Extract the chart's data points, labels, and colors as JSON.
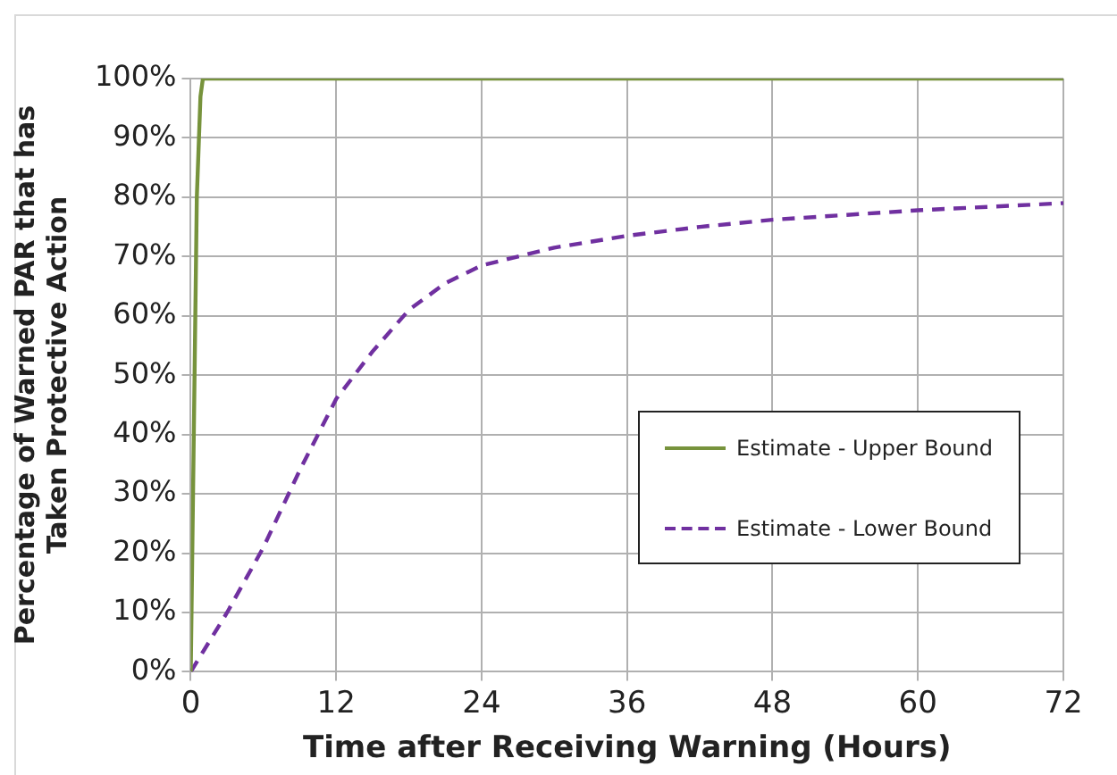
{
  "chart_data": {
    "type": "line",
    "xlabel": "Time after Receiving Warning (Hours)",
    "ylabel": "Percentage of Warned PAR that has Taken Protective Action",
    "xlim": [
      0,
      72
    ],
    "xticks": [
      0,
      12,
      24,
      36,
      48,
      60,
      72
    ],
    "ylim": [
      0,
      100
    ],
    "yticks": [
      {
        "value": 0,
        "label": "0%"
      },
      {
        "value": 10,
        "label": "10%"
      },
      {
        "value": 20,
        "label": "20%"
      },
      {
        "value": 30,
        "label": "30%"
      },
      {
        "value": 40,
        "label": "40%"
      },
      {
        "value": 50,
        "label": "50%"
      },
      {
        "value": 60,
        "label": "60%"
      },
      {
        "value": 70,
        "label": "70%"
      },
      {
        "value": 80,
        "label": "80%"
      },
      {
        "value": 90,
        "label": "90%"
      },
      {
        "value": 100,
        "label": "100%"
      }
    ],
    "grid": true,
    "legend": "right",
    "marker": "none",
    "series": [
      {
        "name": "Estimate - Upper Bound",
        "color": "#77933c",
        "line_style": "solid",
        "x": [
          0,
          0.25,
          0.5,
          0.8,
          1,
          72
        ],
        "values": [
          0,
          40,
          80,
          97,
          100,
          100
        ]
      },
      {
        "name": "Estimate - Lower Bound",
        "color": "#7030a0",
        "line_style": "dashed",
        "x": [
          0,
          3,
          6,
          9,
          12,
          15,
          18,
          21,
          24,
          30,
          36,
          42,
          48,
          54,
          60,
          66,
          72
        ],
        "values": [
          0,
          10,
          21,
          34,
          46,
          54,
          61,
          65.5,
          68.5,
          71.5,
          73.5,
          75,
          76.2,
          77,
          77.8,
          78.4,
          79
        ]
      }
    ]
  }
}
